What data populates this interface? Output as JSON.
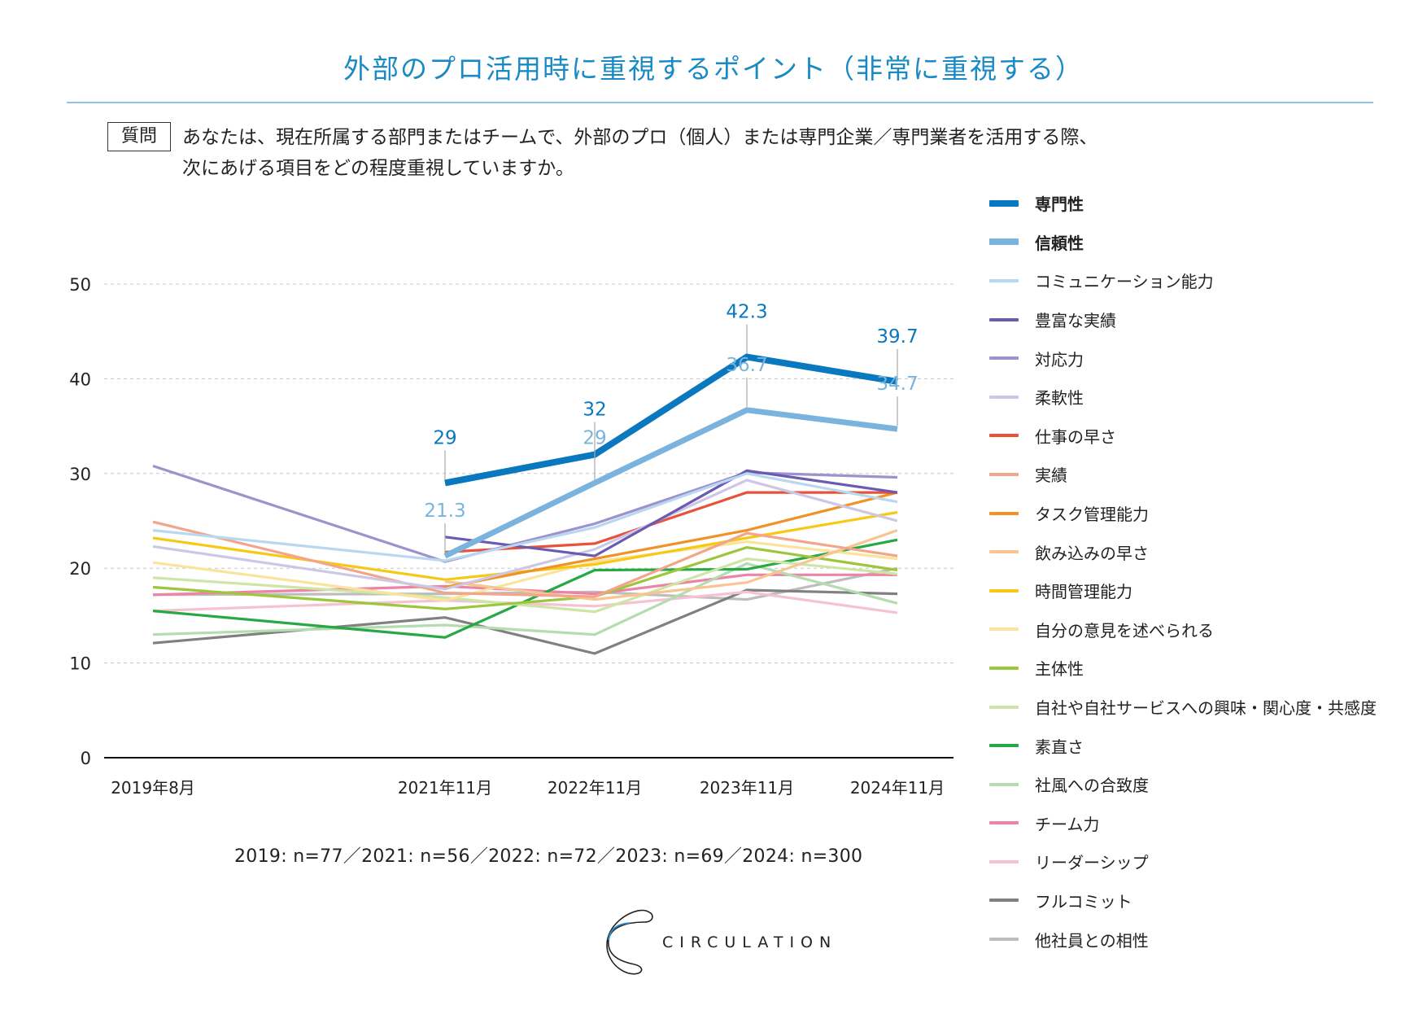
{
  "header": {
    "title": "外部のプロ活用時に重視するポイント（非常に重視する）",
    "question_badge": "質問",
    "question_line1": "あなたは、現在所属する部門またはチームで、外部のプロ（個人）または専門企業／専門業者を活用する際、",
    "question_line2": "次にあげる項目をどの程度重視していますか。"
  },
  "footer": {
    "sample_note": "2019: n=77／2021: n=56／2022: n=72／2023: n=69／2024: n=300",
    "logo_text": "CIRCULATION"
  },
  "chart_data": {
    "type": "line",
    "title": "外部のプロ活用時に重視するポイント（非常に重視する）",
    "xlabel": "",
    "ylabel": "",
    "x": [
      "2019年8月",
      "2021年11月",
      "2022年11月",
      "2023年11月",
      "2024年11月"
    ],
    "x_spacing": "time-proportional",
    "ylim": [
      0,
      50
    ],
    "yticks": [
      0,
      10,
      20,
      30,
      40,
      50
    ],
    "grid": "horizontal-dashed",
    "legend": "right",
    "series": [
      {
        "name": "専門性",
        "color": "#0a78be",
        "emphasis": "bold",
        "values": [
          null,
          29,
          32,
          42.3,
          39.7
        ],
        "labels": [
          null,
          "29",
          "32",
          "42.3",
          "39.7"
        ]
      },
      {
        "name": "信頼性",
        "color": "#7ab4de",
        "emphasis": "bold",
        "values": [
          null,
          21.3,
          29,
          36.7,
          34.7
        ],
        "labels": [
          null,
          "21.3",
          "29",
          "36.7",
          "34.7"
        ]
      },
      {
        "name": "コミュニケーション能力",
        "color": "#b9d8ef",
        "values": [
          24,
          20.8,
          24.3,
          30,
          27
        ]
      },
      {
        "name": "豊富な実績",
        "color": "#6a5bb0",
        "values": [
          null,
          23.3,
          21.3,
          30.3,
          28
        ]
      },
      {
        "name": "対応力",
        "color": "#9c92cc",
        "values": [
          30.8,
          20.7,
          24.7,
          30.1,
          29.6
        ]
      },
      {
        "name": "柔軟性",
        "color": "#cdc7e6",
        "values": [
          22.3,
          17.8,
          22,
          29.3,
          25
        ]
      },
      {
        "name": "仕事の早さ",
        "color": "#e8513a",
        "values": [
          null,
          21.7,
          22.6,
          28,
          28
        ]
      },
      {
        "name": "実績",
        "color": "#f2a58a",
        "values": [
          24.9,
          17.4,
          17,
          23.7,
          21.3
        ]
      },
      {
        "name": "タスク管理能力",
        "color": "#f29226",
        "values": [
          null,
          18,
          21,
          24,
          28
        ]
      },
      {
        "name": "飲み込みの早さ",
        "color": "#f8c592",
        "values": [
          null,
          18.6,
          16.7,
          18.5,
          24
        ]
      },
      {
        "name": "時間管理能力",
        "color": "#f5c915",
        "values": [
          23.2,
          18.8,
          20.4,
          23.2,
          25.9
        ]
      },
      {
        "name": "自分の意見を述べられる",
        "color": "#fae39b",
        "values": [
          20.6,
          16.6,
          20.7,
          22.8,
          21
        ]
      },
      {
        "name": "主体性",
        "color": "#9cc63b",
        "values": [
          18,
          15.7,
          17,
          22.2,
          19.8
        ]
      },
      {
        "name": "自社や自社サービスへの興味・関心度・共感度",
        "color": "#cde5a5",
        "values": [
          19,
          16.9,
          15.4,
          21,
          19.4
        ]
      },
      {
        "name": "素直さ",
        "color": "#27a844",
        "values": [
          15.5,
          12.7,
          19.8,
          19.9,
          23
        ]
      },
      {
        "name": "社風への合致度",
        "color": "#b4dcb0",
        "values": [
          13,
          14,
          13,
          20.5,
          16.3
        ]
      },
      {
        "name": "チーム力",
        "color": "#ec85a5",
        "values": [
          17.2,
          18.1,
          17.3,
          19.3,
          19.3
        ]
      },
      {
        "name": "リーダーシップ",
        "color": "#f6c2d2",
        "values": [
          15.5,
          16.6,
          16,
          17.5,
          15.3
        ]
      },
      {
        "name": "フルコミット",
        "color": "#808080",
        "values": [
          12.1,
          14.8,
          11,
          17.7,
          17.3
        ]
      },
      {
        "name": "他社員との相性",
        "color": "#bdbdbd",
        "values": [
          17.2,
          17.3,
          17.5,
          16.7,
          20
        ]
      }
    ]
  }
}
